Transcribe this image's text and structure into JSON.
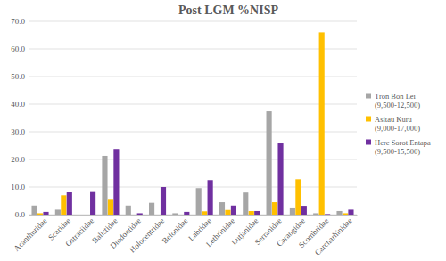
{
  "chart_data": {
    "type": "bar",
    "title": "Post LGM %NISP",
    "categories": [
      "Acanthuridae",
      "Scaridae",
      "Ostraciidae",
      "Balistidae",
      "Diodontidae",
      "Holocentridae",
      "Belonidae",
      "Labridae",
      "Lethrinidae",
      "Lutjanidae",
      "Serranidae",
      "Carangidae",
      "Scombridae",
      "Carcharhinidae"
    ],
    "series": [
      {
        "name": "Tron Bon Lei (9,500-12,500)",
        "color": "#a6a6a6",
        "values": [
          3.3,
          1.8,
          0,
          21.3,
          3.3,
          4.3,
          0.5,
          9.6,
          4.5,
          8.0,
          37.4,
          2.6,
          0.5,
          1.3
        ]
      },
      {
        "name": "Asitau Kuru (9,000-17,000)",
        "color": "#ffc000",
        "values": [
          0.5,
          7.0,
          0,
          5.7,
          0,
          0,
          0,
          1.2,
          1.7,
          1.3,
          4.5,
          12.8,
          66.0,
          0.5
        ]
      },
      {
        "name": "Here Sorot Entapa (9,500-15,500)",
        "color": "#7030a0",
        "values": [
          1.0,
          8.2,
          8.5,
          23.8,
          0.5,
          10.0,
          1.0,
          12.5,
          3.3,
          1.3,
          25.8,
          3.2,
          0.2,
          1.8
        ]
      }
    ],
    "ylim": [
      0,
      70
    ],
    "yticks": [
      {
        "value": 0,
        "label": "0.0"
      },
      {
        "value": 10,
        "label": "10.0"
      },
      {
        "value": 20,
        "label": "20.0"
      },
      {
        "value": 30,
        "label": "30.0"
      },
      {
        "value": 40,
        "label": "40.0"
      },
      {
        "value": 50,
        "label": "50.0"
      },
      {
        "value": 60,
        "label": "60.0"
      },
      {
        "value": 70,
        "label": "70.0"
      }
    ],
    "grid": true,
    "legend": "right"
  }
}
